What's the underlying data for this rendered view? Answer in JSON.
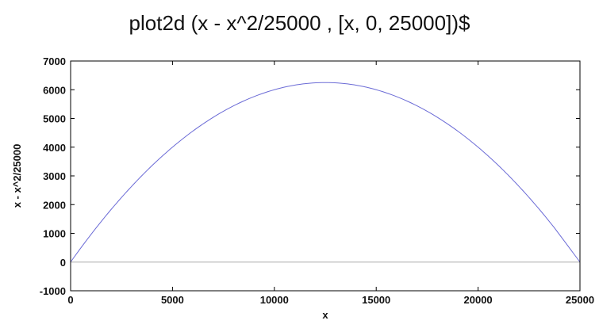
{
  "chart_data": {
    "type": "line",
    "title": "plot2d (x - x^2/25000 , [x, 0, 25000])$",
    "xlabel": "x",
    "ylabel": "x - x^2/25000",
    "xlim": [
      0,
      25000
    ],
    "ylim": [
      -1000,
      7000
    ],
    "x_ticks": [
      "0",
      "5000",
      "10000",
      "15000",
      "20000",
      "25000"
    ],
    "y_ticks": [
      "-1000",
      "0",
      "1000",
      "2000",
      "3000",
      "4000",
      "5000",
      "6000",
      "7000"
    ],
    "grid": false,
    "zero_line": true,
    "function": "x - x^2/25000",
    "series": [
      {
        "x": [
          0,
          1250,
          2500,
          3750,
          5000,
          6250,
          7500,
          8750,
          10000,
          11250,
          12500,
          13750,
          15000,
          16250,
          17500,
          18750,
          20000,
          21250,
          22500,
          23750,
          25000
        ],
        "values": [
          0,
          1187.5,
          2250,
          3187.5,
          4000,
          4687.5,
          5250,
          5687.5,
          6000,
          6187.5,
          6250,
          6187.5,
          6000,
          5687.5,
          5250,
          4687.5,
          4000,
          3187.5,
          2250,
          1187.5,
          0
        ],
        "color": "#6b6bd6"
      }
    ],
    "colors": {
      "zero_line": "#c8c8c8",
      "axis": "#000000"
    }
  }
}
